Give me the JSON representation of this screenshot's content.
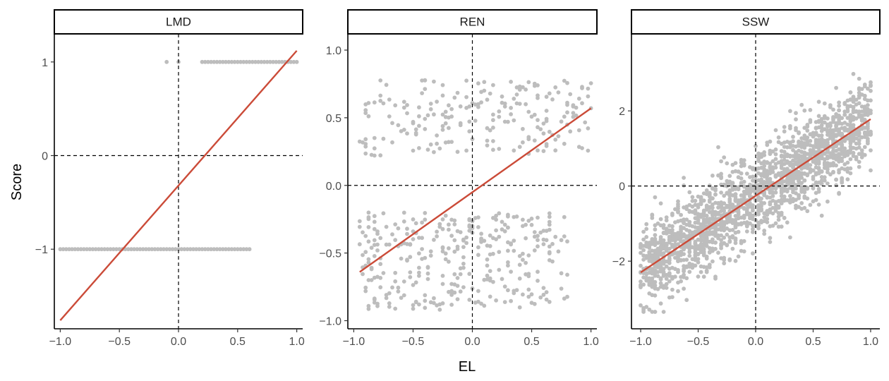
{
  "x_axis_title": "EL",
  "y_axis_title": "Score",
  "colors": {
    "points": "#bdbdbd",
    "fit_line": "#cb4b38",
    "reference_lines": "#000000"
  },
  "chart_data": [
    {
      "type": "scatter",
      "panel": "LMD",
      "xlim": [
        -1.05,
        1.05
      ],
      "ylim": [
        -1.85,
        1.3
      ],
      "x_ticks": [
        -1.0,
        -0.5,
        0.0,
        0.5,
        1.0
      ],
      "x_tick_labels": [
        "−1.0",
        "−0.5",
        "0.0",
        "0.5",
        "1.0"
      ],
      "y_ticks": [
        -1,
        0,
        1
      ],
      "y_tick_labels": [
        "−1",
        "0",
        "1"
      ],
      "reference_lines": {
        "x": 0,
        "y": 0
      },
      "fit_line": {
        "x": [
          -1.0,
          1.0
        ],
        "y": [
          -1.76,
          1.12
        ]
      },
      "points": {
        "y_at_1": {
          "x_from": 0.2,
          "x_to": 1.0,
          "step": 0.025,
          "extra_x": [
            -0.1,
            0.0
          ]
        },
        "y_at_minus_1": {
          "x_from": -1.0,
          "x_to": 0.6,
          "step": 0.025
        }
      }
    },
    {
      "type": "scatter",
      "panel": "REN",
      "xlim": [
        -1.05,
        1.05
      ],
      "ylim": [
        -1.06,
        1.12
      ],
      "x_ticks": [
        -1.0,
        -0.5,
        0.0,
        0.5,
        1.0
      ],
      "x_tick_labels": [
        "−1.0",
        "−0.5",
        "0.0",
        "0.5",
        "1.0"
      ],
      "y_ticks": [
        -1.0,
        -0.5,
        0.0,
        0.5,
        1.0
      ],
      "y_tick_labels": [
        "−1.0",
        "−0.5",
        "0.0",
        "0.5",
        "1.0"
      ],
      "reference_lines": {
        "x": 0,
        "y": 0
      },
      "fit_line": {
        "x": [
          -0.95,
          1.0
        ],
        "y": [
          -0.64,
          0.57
        ]
      },
      "point_clouds": [
        {
          "x_range": [
            -0.95,
            1.0
          ],
          "y_range": [
            0.22,
            0.78
          ],
          "n": 210,
          "trend": 0.25,
          "seed": 11
        },
        {
          "x_range": [
            -0.95,
            0.8
          ],
          "y_range": [
            -0.92,
            -0.2
          ],
          "n": 330,
          "trend": 0.22,
          "seed": 23
        }
      ]
    },
    {
      "type": "scatter",
      "panel": "SSW",
      "xlim": [
        -1.08,
        1.08
      ],
      "ylim": [
        -3.8,
        4.05
      ],
      "x_ticks": [
        -1.0,
        -0.5,
        0.0,
        0.5,
        1.0
      ],
      "x_tick_labels": [
        "−1.0",
        "−0.5",
        "0.0",
        "0.5",
        "1.0"
      ],
      "y_ticks": [
        -2,
        0,
        2
      ],
      "y_tick_labels": [
        "−2",
        "0",
        "2"
      ],
      "reference_lines": {
        "x": 0,
        "y": 0
      },
      "fit_line": {
        "x": [
          -1.0,
          1.0
        ],
        "y": [
          -2.3,
          1.78
        ]
      },
      "point_cloud": {
        "x_range": [
          -1.0,
          1.0
        ],
        "slope": 2.04,
        "intercept": -0.26,
        "spread": 1.05,
        "n": 1900,
        "seed": 37
      }
    }
  ]
}
